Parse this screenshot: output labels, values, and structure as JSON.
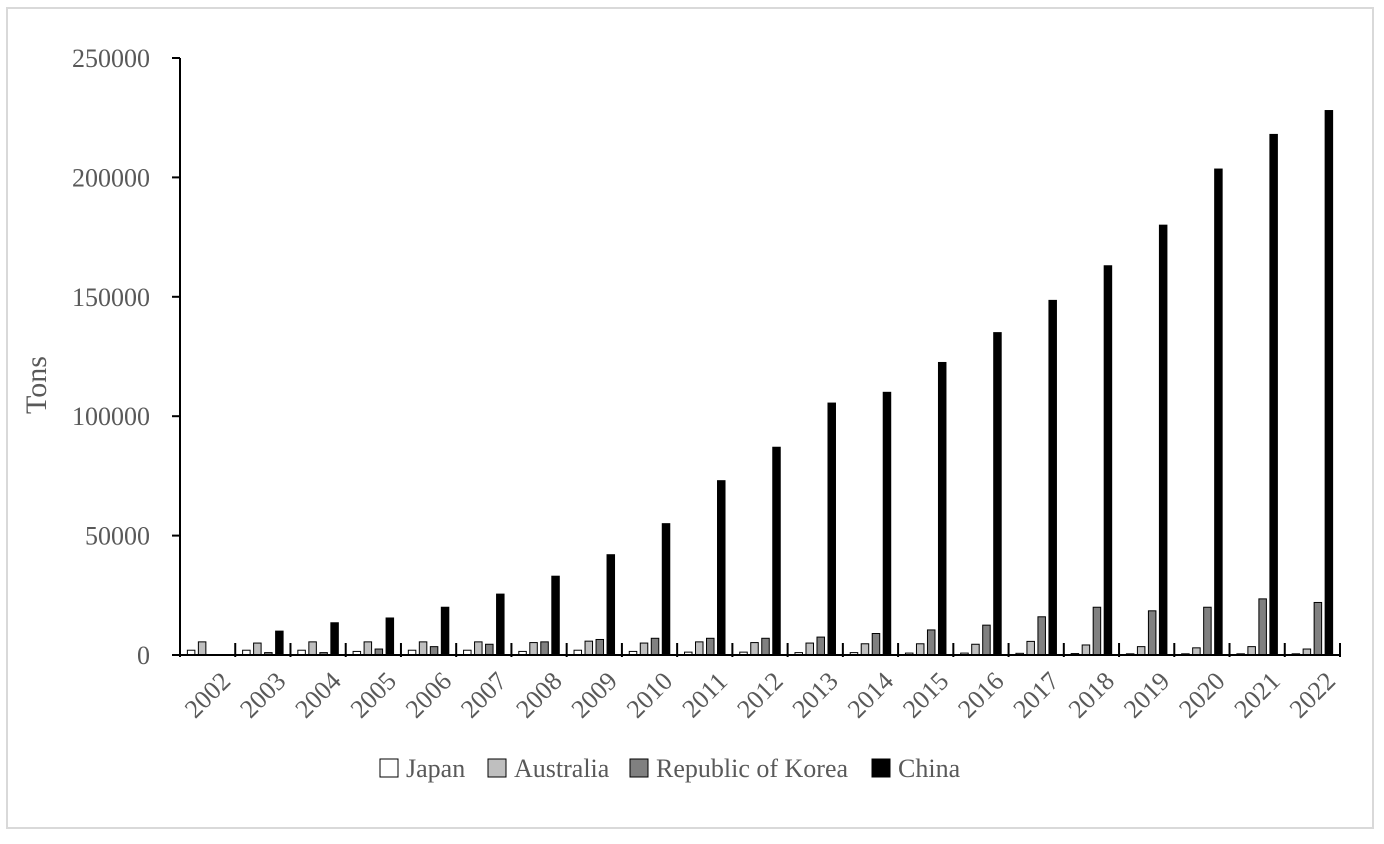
{
  "chart_data": {
    "type": "bar",
    "title": "",
    "xlabel": "",
    "ylabel": "Tons",
    "ylim": [
      0,
      250000
    ],
    "yticks": [
      0,
      50000,
      100000,
      150000,
      200000,
      250000
    ],
    "grid": false,
    "legend_position": "bottom",
    "categories": [
      "2002",
      "2003",
      "2004",
      "2005",
      "2006",
      "2007",
      "2008",
      "2009",
      "2010",
      "2011",
      "2012",
      "2013",
      "2014",
      "2015",
      "2016",
      "2017",
      "2018",
      "2019",
      "2020",
      "2021",
      "2022"
    ],
    "series": [
      {
        "name": "Japan",
        "color": "#ffffff",
        "values": [
          2000,
          2000,
          2000,
          1500,
          2000,
          2000,
          1500,
          2000,
          1500,
          1200,
          1200,
          1000,
          1000,
          800,
          800,
          700,
          600,
          500,
          500,
          500,
          500
        ]
      },
      {
        "name": "Australia",
        "color": "#bfbfbf",
        "values": [
          5500,
          5000,
          5500,
          5500,
          5500,
          5500,
          5200,
          5800,
          5000,
          5500,
          5200,
          5000,
          4700,
          4700,
          4500,
          5700,
          4200,
          3500,
          3000,
          3500,
          2500
        ]
      },
      {
        "name": "Republic of Korea",
        "color": "#808080",
        "values": [
          0,
          1000,
          1000,
          2500,
          3500,
          4500,
          5500,
          6500,
          7000,
          7000,
          7000,
          7500,
          9000,
          10500,
          12500,
          16000,
          20000,
          18500,
          20000,
          23500,
          22000
        ]
      },
      {
        "name": "China",
        "color": "#000000",
        "values": [
          0,
          10000,
          13500,
          15500,
          20000,
          25500,
          33000,
          42000,
          55000,
          73000,
          87000,
          105500,
          110000,
          122500,
          135000,
          148500,
          163000,
          180000,
          203500,
          218000,
          228000
        ]
      }
    ]
  }
}
